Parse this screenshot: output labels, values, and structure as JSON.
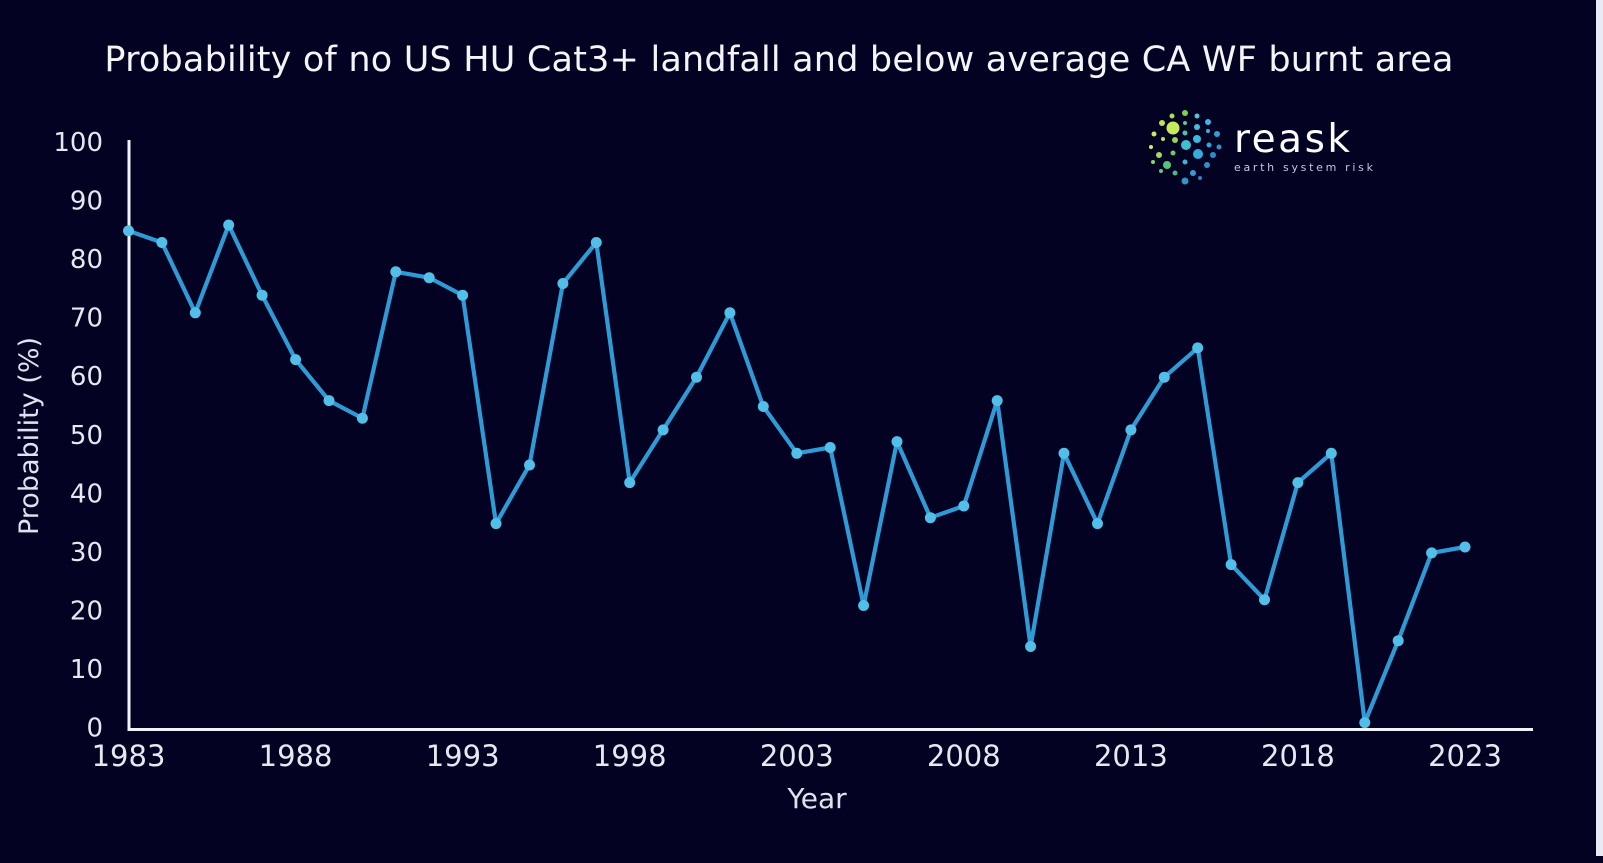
{
  "page": {
    "background_color": "#030222",
    "right_edge_strip_color": "#e9eaf4"
  },
  "chart_data": {
    "type": "line",
    "title": "Probability of no US HU Cat3+ landfall and below average CA WF burnt area",
    "xlabel": "Year",
    "ylabel": "Probability (%)",
    "x": [
      1983,
      1984,
      1985,
      1986,
      1987,
      1988,
      1989,
      1990,
      1991,
      1992,
      1993,
      1994,
      1995,
      1996,
      1997,
      1998,
      1999,
      2000,
      2001,
      2002,
      2003,
      2004,
      2005,
      2006,
      2007,
      2008,
      2009,
      2010,
      2011,
      2012,
      2013,
      2014,
      2015,
      2016,
      2017,
      2018,
      2019,
      2020,
      2021,
      2022,
      2023
    ],
    "series": [
      {
        "name": "Probability of no US HU Cat3+ landfall and below average CA WF burnt area",
        "values": [
          85,
          83,
          71,
          86,
          74,
          63,
          56,
          53,
          78,
          77,
          74,
          35,
          45,
          76,
          83,
          42,
          51,
          60,
          71,
          55,
          47,
          48,
          21,
          49,
          36,
          38,
          56,
          14,
          47,
          35,
          51,
          60,
          65,
          28,
          22,
          42,
          47,
          1,
          15,
          30,
          31
        ]
      }
    ],
    "xticks": [
      1983,
      1988,
      1993,
      1998,
      2003,
      2008,
      2013,
      2018,
      2023
    ],
    "yticks": [
      0,
      10,
      20,
      30,
      40,
      50,
      60,
      70,
      80,
      90,
      100
    ],
    "ylim": [
      0,
      100
    ],
    "grid": false,
    "legend": "none",
    "line_color": "#2e9bd6",
    "marker_color": "#52bfe8",
    "axis_color": "#f2f3f8",
    "tick_label_color": "#e6e8f0",
    "axis_label_color": "#dfe2ee"
  },
  "logo": {
    "brand": "reask",
    "tagline": "earth system risk"
  }
}
